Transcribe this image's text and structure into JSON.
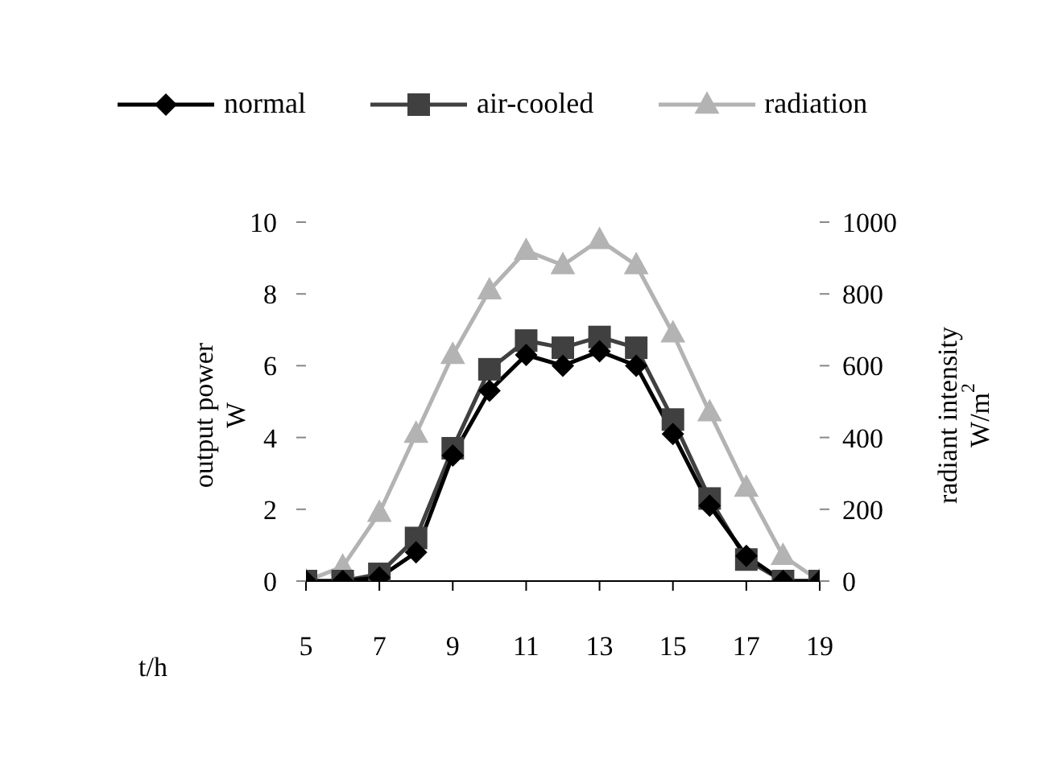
{
  "chart_data": {
    "type": "line",
    "xlabel": "t/h",
    "ylabel": "output power\nW",
    "y2label": "radiant intensity\nW/m$^{2}$",
    "x": [
      5,
      6,
      7,
      8,
      9,
      10,
      11,
      12,
      13,
      14,
      15,
      16,
      17,
      18,
      19
    ],
    "xlim": [
      5,
      19
    ],
    "xticks": [
      5,
      7,
      9,
      11,
      13,
      15,
      17,
      19
    ],
    "ylim": [
      0,
      10
    ],
    "yticks": [
      0,
      2,
      4,
      6,
      8,
      10
    ],
    "y2lim": [
      0,
      1000
    ],
    "y2ticks": [
      0,
      200,
      400,
      600,
      800,
      1000
    ],
    "legend": "top",
    "line_style": "solid",
    "series": [
      {
        "name": "normal",
        "color": "#000000",
        "marker": "diamond",
        "values": [
          0,
          0,
          0.1,
          0.8,
          3.5,
          5.3,
          6.3,
          6.0,
          6.4,
          6.0,
          4.1,
          2.1,
          0.7,
          0,
          0
        ]
      },
      {
        "name": "air-cooled",
        "color": "#404040",
        "marker": "square",
        "values": [
          0,
          0,
          0.2,
          1.2,
          3.7,
          5.9,
          6.7,
          6.5,
          6.8,
          6.5,
          4.5,
          2.3,
          0.6,
          0,
          0
        ]
      },
      {
        "name": "radiation",
        "color": "#b3b3b3",
        "marker": "triangle",
        "axis": "y2",
        "values": [
          0,
          40,
          190,
          410,
          630,
          810,
          920,
          880,
          950,
          880,
          690,
          470,
          260,
          70,
          0
        ]
      }
    ]
  }
}
